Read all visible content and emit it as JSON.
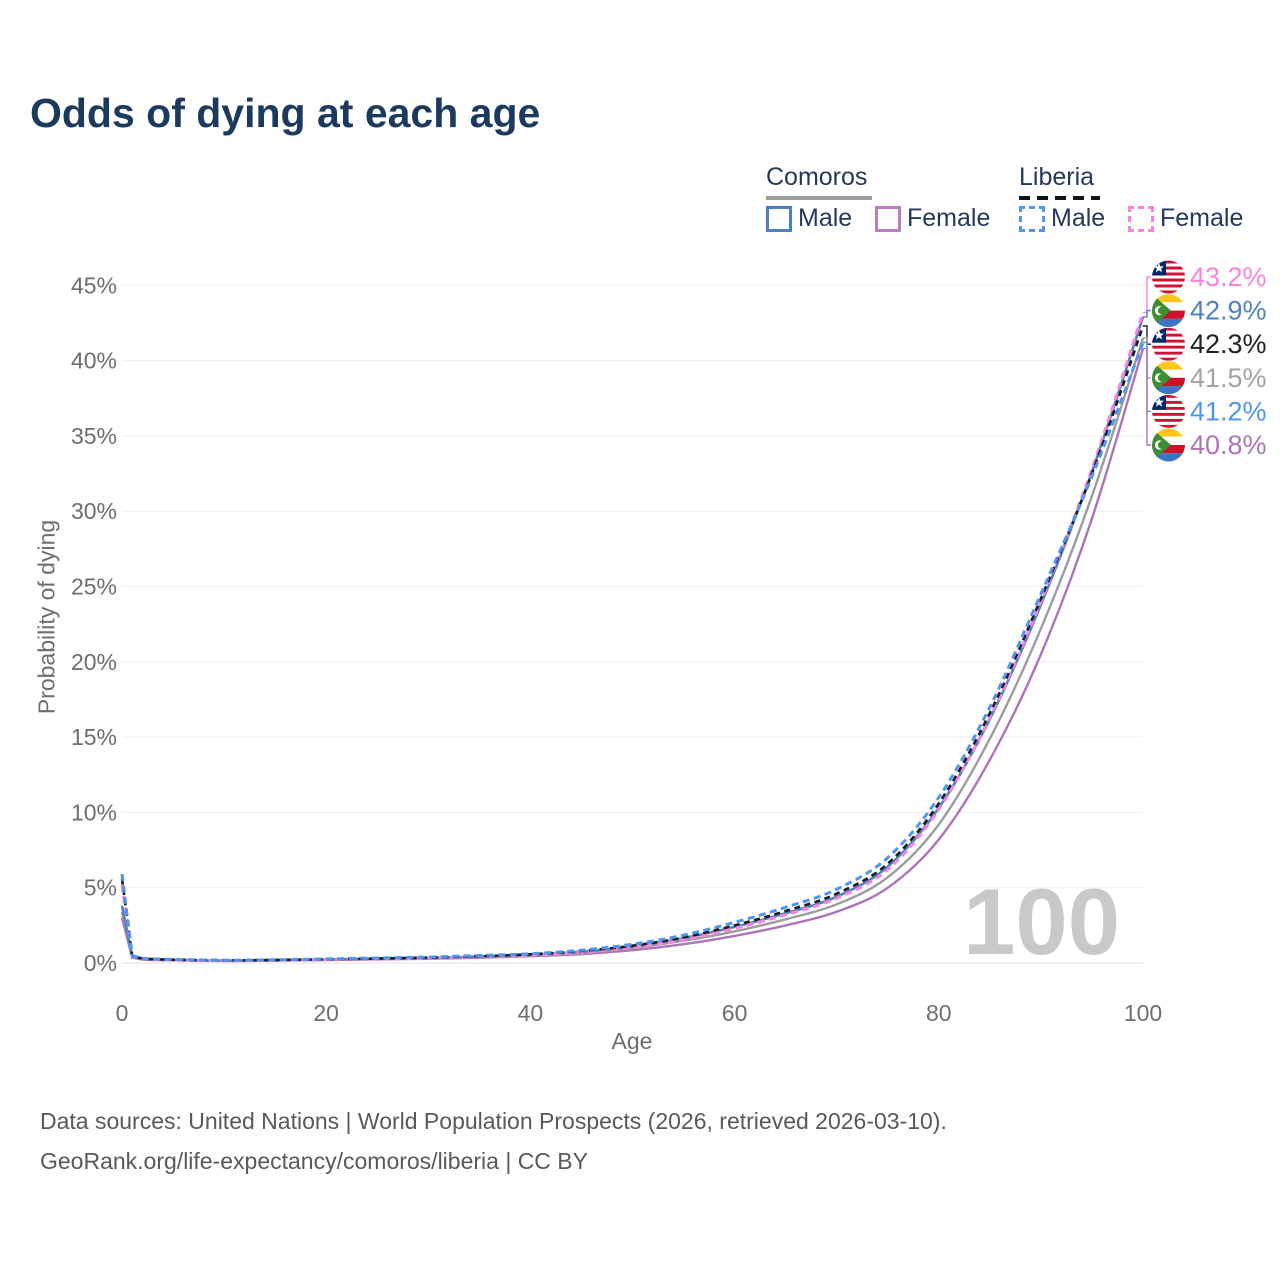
{
  "title": "Odds of dying at each age",
  "legend": {
    "groups": [
      {
        "name": "Comoros",
        "line_style": "solid",
        "underline_color": "#9e9e9e",
        "items": [
          {
            "label": "Male",
            "color": "#4e80c2",
            "dashed": false
          },
          {
            "label": "Female",
            "color": "#bd7ec4",
            "dashed": false
          }
        ]
      },
      {
        "name": "Liberia",
        "line_style": "dashed",
        "underline_color": "#141414",
        "items": [
          {
            "label": "Male",
            "color": "#4f96f2",
            "dashed": true
          },
          {
            "label": "Female",
            "color": "#fb83e0",
            "dashed": true
          }
        ]
      }
    ]
  },
  "watermark": "100",
  "end_labels": [
    {
      "flag": "liberia",
      "series": "Liberia female",
      "value": "43.2%",
      "color": "#fb83e0",
      "line_value": 43.2
    },
    {
      "flag": "comoros",
      "series": "Comoros male",
      "value": "42.9%",
      "color": "#4e80c2",
      "line_value": 42.9
    },
    {
      "flag": "liberia",
      "series": "Liberia both",
      "value": "42.3%",
      "color": "#222222",
      "line_value": 42.3
    },
    {
      "flag": "comoros",
      "series": "Comoros both",
      "value": "41.5%",
      "color": "#a3a3a6",
      "line_value": 41.5
    },
    {
      "flag": "liberia",
      "series": "Liberia male",
      "value": "41.2%",
      "color": "#4f96f2",
      "line_value": 41.2
    },
    {
      "flag": "comoros",
      "series": "Comoros female",
      "value": "40.8%",
      "color": "#ad74b8",
      "line_value": 40.8
    }
  ],
  "footer": {
    "line1": "Data sources: United Nations | World Population Prospects (2026, retrieved 2026-03-10).",
    "line2": "GeoRank.org/life-expectancy/comoros/liberia | CC BY"
  },
  "chart_data": {
    "type": "line",
    "title": "Odds of dying at each age",
    "xlabel": "Age",
    "ylabel": "Probability of dying",
    "xlim": [
      0,
      100
    ],
    "ylim": [
      0,
      45
    ],
    "x_ticks": [
      0,
      20,
      40,
      60,
      80,
      100
    ],
    "y_ticks": [
      0,
      5,
      10,
      15,
      20,
      25,
      30,
      35,
      40,
      45
    ],
    "y_tick_suffix": "%",
    "grid": "horizontal",
    "legend_position": "top-right",
    "ages": [
      0,
      1,
      2,
      5,
      10,
      15,
      20,
      25,
      30,
      35,
      40,
      45,
      50,
      55,
      60,
      65,
      70,
      75,
      80,
      85,
      90,
      95,
      100
    ],
    "series": [
      {
        "id": "comoros-female",
        "name": "Comoros female",
        "color": "#ad74b8",
        "dash": null,
        "width": 2.4,
        "values": [
          3.0,
          0.35,
          0.23,
          0.18,
          0.14,
          0.16,
          0.2,
          0.24,
          0.28,
          0.35,
          0.45,
          0.6,
          0.85,
          1.25,
          1.8,
          2.5,
          3.4,
          5.0,
          8.2,
          13.5,
          20.5,
          29.5,
          40.8
        ]
      },
      {
        "id": "comoros-both",
        "name": "Comoros both sexes",
        "color": "#9c9ca0",
        "dash": null,
        "width": 2.4,
        "values": [
          3.4,
          0.38,
          0.25,
          0.19,
          0.15,
          0.17,
          0.22,
          0.26,
          0.31,
          0.39,
          0.5,
          0.68,
          1.0,
          1.48,
          2.1,
          2.9,
          3.9,
          5.7,
          9.2,
          14.9,
          22.2,
          31.0,
          41.5
        ]
      },
      {
        "id": "comoros-male",
        "name": "Comoros male",
        "color": "#4e80c2",
        "dash": null,
        "width": 2.6,
        "values": [
          3.8,
          0.4,
          0.27,
          0.21,
          0.16,
          0.19,
          0.24,
          0.29,
          0.34,
          0.43,
          0.55,
          0.76,
          1.1,
          1.65,
          2.4,
          3.3,
          4.4,
          6.4,
          10.3,
          16.2,
          23.8,
          32.6,
          42.9
        ]
      },
      {
        "id": "liberia-female",
        "name": "Liberia female",
        "color": "#fb83e0",
        "dash": "7 4.5",
        "width": 3,
        "values": [
          5.2,
          0.42,
          0.28,
          0.2,
          0.16,
          0.18,
          0.23,
          0.27,
          0.33,
          0.41,
          0.52,
          0.72,
          1.05,
          1.55,
          2.3,
          3.2,
          4.3,
          6.2,
          10.2,
          16.3,
          24.0,
          32.8,
          43.2
        ]
      },
      {
        "id": "liberia-both",
        "name": "Liberia both sexes",
        "color": "#1c1c1c",
        "dash": "6 4.5",
        "width": 2.6,
        "values": [
          5.6,
          0.46,
          0.3,
          0.22,
          0.18,
          0.2,
          0.25,
          0.3,
          0.36,
          0.45,
          0.58,
          0.8,
          1.15,
          1.7,
          2.5,
          3.45,
          4.6,
          6.6,
          10.6,
          16.6,
          24.2,
          32.5,
          42.3
        ]
      },
      {
        "id": "liberia-male",
        "name": "Liberia male",
        "color": "#4f96f2",
        "dash": "7 4.5",
        "width": 3,
        "values": [
          5.9,
          0.5,
          0.32,
          0.24,
          0.19,
          0.21,
          0.27,
          0.33,
          0.4,
          0.5,
          0.62,
          0.85,
          1.25,
          1.85,
          2.7,
          3.7,
          4.9,
          7.0,
          11.0,
          17.0,
          24.5,
          32.3,
          41.2
        ]
      }
    ]
  }
}
